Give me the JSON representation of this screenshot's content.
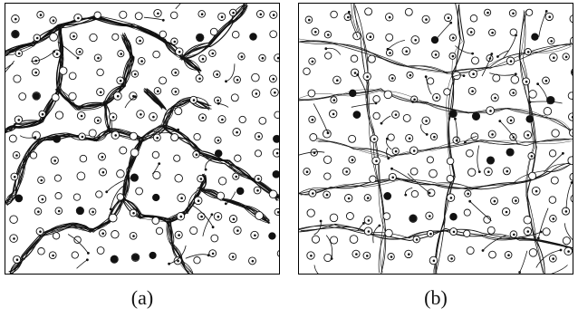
{
  "figure": {
    "panels": [
      {
        "caption": "(a)",
        "style": "clustered-network"
      },
      {
        "caption": "(b)",
        "style": "dispersed-network"
      }
    ]
  },
  "colors": {
    "ink": "#111111",
    "background": "#ffffff"
  }
}
